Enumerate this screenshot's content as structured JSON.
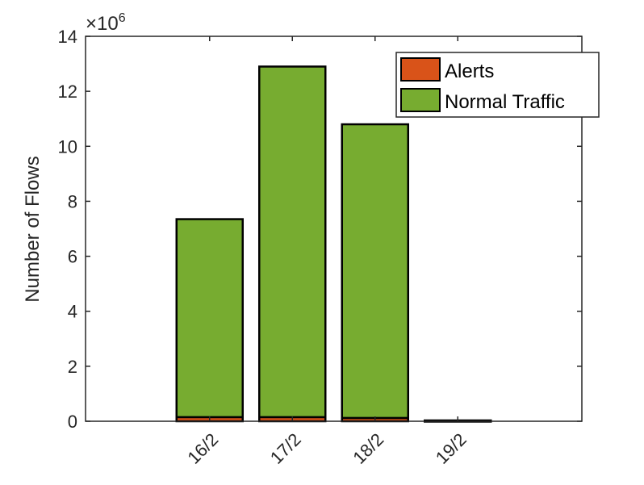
{
  "chart_data": {
    "type": "bar",
    "stacked": true,
    "categories": [
      "16/2",
      "17/2",
      "18/2",
      "19/2"
    ],
    "series": [
      {
        "name": "Alerts",
        "color": "#D95319",
        "values": [
          150000,
          150000,
          120000,
          10000
        ]
      },
      {
        "name": "Normal Traffic",
        "color": "#77AC30",
        "values": [
          7200000,
          12750000,
          10680000,
          20000
        ]
      }
    ],
    "title": "",
    "xlabel": "",
    "ylabel": "Number of Flows",
    "ylim": [
      0,
      14000000
    ],
    "yticks": [
      0,
      2000000,
      4000000,
      6000000,
      8000000,
      10000000,
      12000000,
      14000000
    ],
    "ytick_labels": [
      "0",
      "2",
      "4",
      "6",
      "8",
      "10",
      "12",
      "14"
    ],
    "y_exponent_label": {
      "base": "×10",
      "power": "6"
    },
    "xtick_rotation_deg": 45,
    "grid": false,
    "legend_position": "top-right"
  }
}
